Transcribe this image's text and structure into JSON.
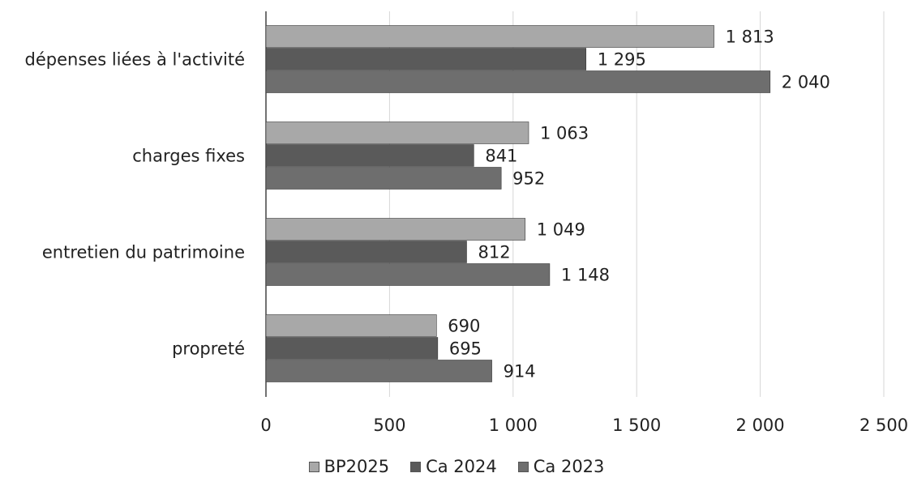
{
  "chart_data": {
    "type": "bar",
    "orientation": "horizontal",
    "categories": [
      "dépenses liées à l'activité",
      "charges fixes",
      "entretien du patrimoine",
      "propreté"
    ],
    "series": [
      {
        "name": "BP2025",
        "values": [
          1813,
          1063,
          1049,
          690
        ],
        "labels": [
          "1 813",
          "1 063",
          "1 049",
          "690"
        ],
        "color": "#a8a8a8"
      },
      {
        "name": "Ca 2024",
        "values": [
          1295,
          841,
          812,
          695
        ],
        "labels": [
          "1 295",
          "841",
          "812",
          "695"
        ],
        "color": "#5a5a5a"
      },
      {
        "name": "Ca 2023",
        "values": [
          2040,
          952,
          1148,
          914
        ],
        "labels": [
          "2 040",
          "952",
          "1 148",
          "914"
        ],
        "color": "#6e6e6e"
      }
    ],
    "xlim": [
      0,
      2500
    ],
    "xticks": [
      0,
      500,
      1000,
      1500,
      2000,
      2500
    ],
    "xtick_labels": [
      "0",
      "500",
      "1 000",
      "1 500",
      "2 000",
      "2 500"
    ],
    "title": "",
    "xlabel": "",
    "ylabel": "",
    "grid": "vertical",
    "legend_position": "bottom"
  }
}
